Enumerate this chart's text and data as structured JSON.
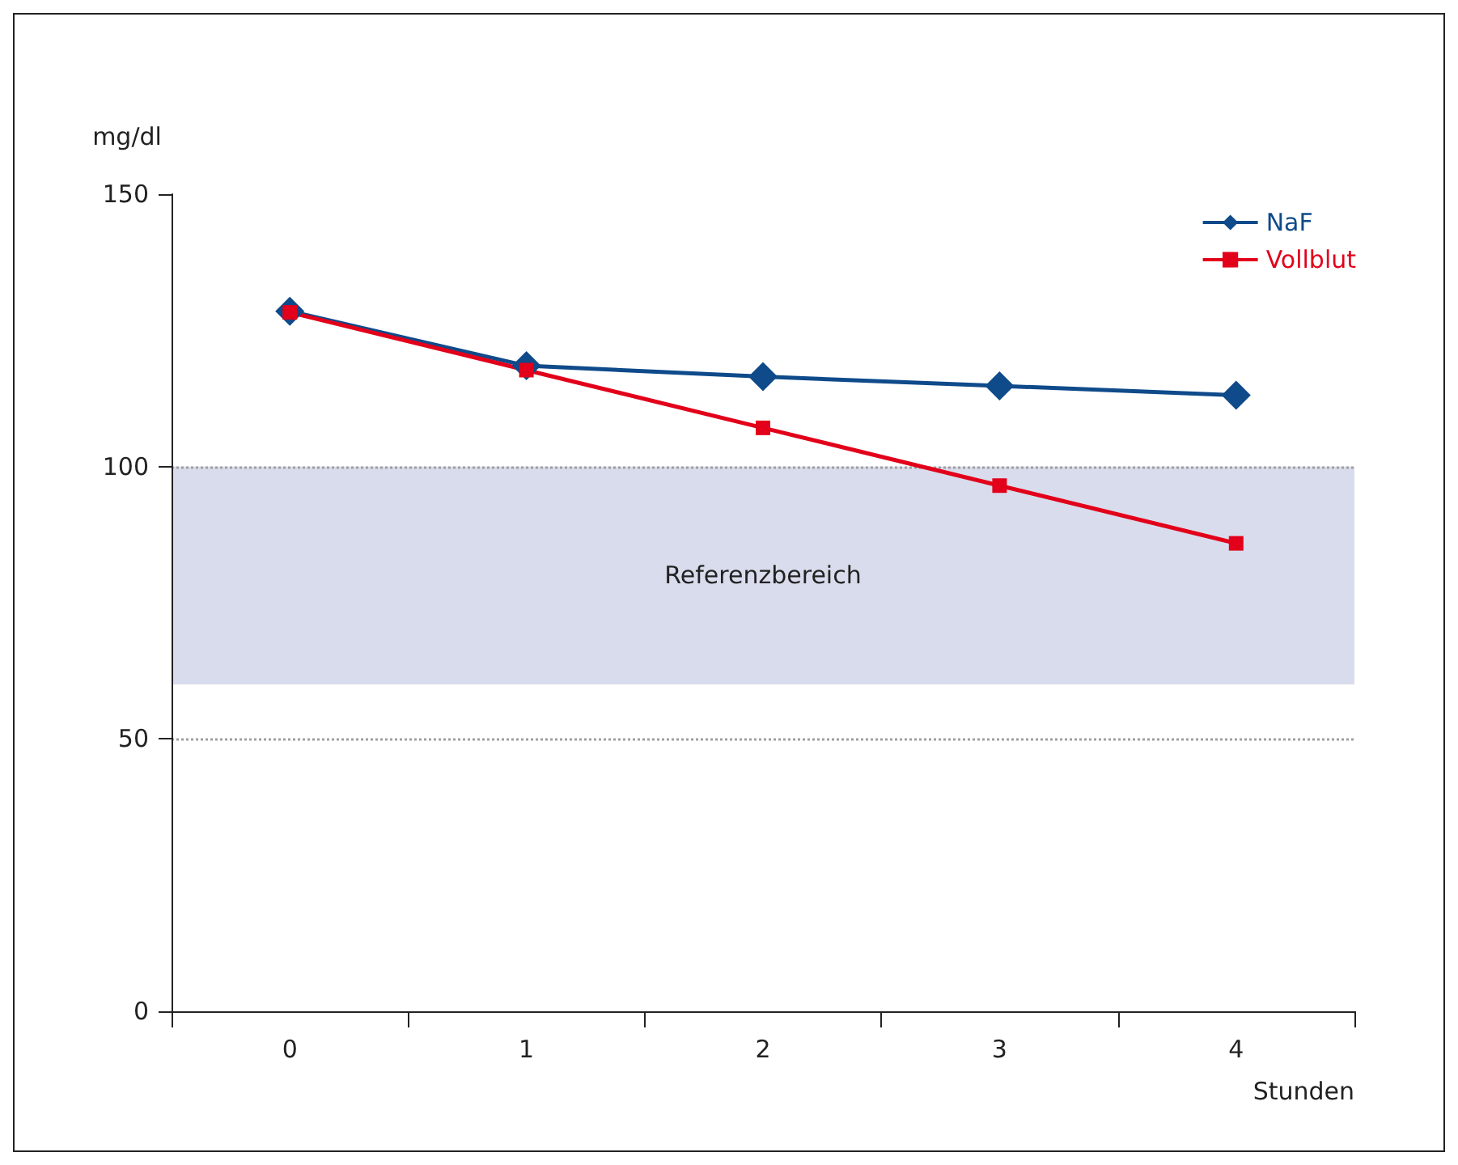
{
  "chart_data": {
    "type": "line",
    "xlabel": "Stunden",
    "ylabel": "mg/dl",
    "categories": [
      "0",
      "1",
      "2",
      "3",
      "4"
    ],
    "series": [
      {
        "name": "NaF",
        "color": "#0f4a8a",
        "marker": "diamond",
        "values": [
          128.5,
          118.5,
          116.5,
          114.8,
          113.1
        ]
      },
      {
        "name": "Vollblut",
        "color": "#e2001a",
        "marker": "square",
        "values": [
          128.3,
          117.7,
          107.1,
          96.5,
          85.9
        ]
      }
    ],
    "ylim": [
      0,
      150
    ],
    "yticks": [
      0,
      50,
      100,
      150
    ],
    "grid": false,
    "legend": "top right",
    "line_style": "solid",
    "ref_lines": [
      {
        "axis": "y",
        "value": 100,
        "color": "#a0a0a0",
        "line_style": "dotted"
      },
      {
        "axis": "y",
        "value": 50,
        "color": "#a0a0a0",
        "line_style": "dotted"
      }
    ],
    "bands": [
      {
        "axis": "y",
        "from": 60,
        "to": 100,
        "label": "Referenzbereich",
        "color": "#d9dcec"
      }
    ]
  }
}
